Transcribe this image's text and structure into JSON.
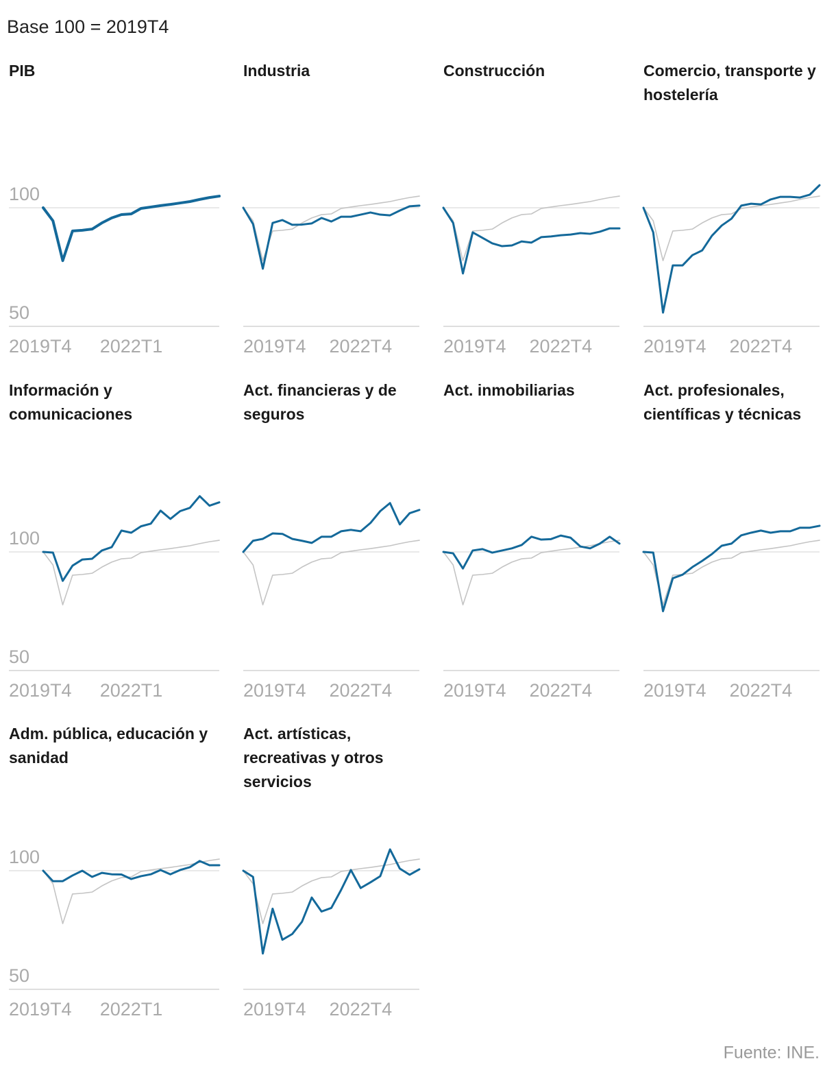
{
  "header": "Base 100 = 2019T4",
  "source": "Fuente: INE.",
  "chart_data": [
    {
      "type": "line",
      "title": "PIB",
      "categories": [
        "2019T4",
        null,
        null,
        null,
        null,
        null,
        null,
        null,
        null,
        "2022T1",
        null,
        null,
        null,
        null,
        null,
        null,
        null,
        null,
        null
      ],
      "series": [
        {
          "color": "#14699a",
          "line_width": 4,
          "values": [
            100,
            94.5,
            77.7,
            90.2,
            90.5,
            91,
            93.6,
            95.7,
            97.1,
            97.4,
            99.7,
            100.3,
            100.9,
            101.4,
            102,
            102.6,
            103.5,
            104.3,
            104.9
          ]
        }
      ],
      "ylim": [
        50,
        125
      ],
      "yticks": [
        50,
        100
      ],
      "ytick_labels": true,
      "grid": true
    },
    {
      "type": "line",
      "title": "Industria",
      "categories": [
        "2019T4",
        null,
        null,
        null,
        null,
        null,
        null,
        null,
        null,
        null,
        null,
        null,
        "2022T4",
        null,
        null,
        null,
        null,
        null,
        null
      ],
      "series": [
        {
          "color": "#14699a",
          "line_width": 3,
          "values": [
            100,
            93.1,
            74.3,
            93.6,
            94.8,
            92.8,
            92.9,
            93.4,
            95.7,
            94.2,
            96.2,
            96.2,
            97.1,
            98,
            97.1,
            96.8,
            98.8,
            100.6,
            100.9
          ]
        }
      ],
      "reference_color": "#c4c4c4",
      "ylim": [
        50,
        125
      ],
      "yticks": [
        50,
        100
      ],
      "ytick_labels": false,
      "grid": true
    },
    {
      "type": "line",
      "title": "Construcción",
      "categories": [
        "2019T4",
        null,
        null,
        null,
        null,
        null,
        null,
        null,
        null,
        null,
        null,
        null,
        "2022T4",
        null,
        null,
        null,
        null,
        null,
        null
      ],
      "series": [
        {
          "color": "#14699a",
          "line_width": 3,
          "values": [
            100,
            93.6,
            72.3,
            89.6,
            87.3,
            85,
            83.8,
            84.1,
            85.8,
            85.3,
            87.6,
            87.9,
            88.4,
            88.7,
            89.3,
            89,
            89.9,
            91.3,
            91.3
          ]
        }
      ],
      "reference_color": "#c4c4c4",
      "ylim": [
        50,
        125
      ],
      "yticks": [
        50,
        100
      ],
      "ytick_labels": false,
      "grid": true
    },
    {
      "type": "line",
      "title": "Comercio, transporte y hostelería",
      "categories": [
        "2019T4",
        null,
        null,
        null,
        null,
        null,
        null,
        null,
        null,
        null,
        null,
        null,
        "2022T4",
        null,
        null,
        null,
        null,
        null,
        null
      ],
      "series": [
        {
          "color": "#14699a",
          "line_width": 3,
          "values": [
            100,
            89.6,
            55.8,
            75.7,
            75.7,
            80,
            82,
            88.2,
            92.5,
            95.4,
            100.9,
            101.7,
            101.4,
            103.5,
            104.6,
            104.6,
            104.3,
            105.5,
            109.5
          ]
        }
      ],
      "reference_color": "#c4c4c4",
      "ylim": [
        50,
        125
      ],
      "yticks": [
        50,
        100
      ],
      "ytick_labels": false,
      "grid": true
    },
    {
      "type": "line",
      "title": "Información y comunicaciones",
      "categories": [
        "2019T4",
        null,
        null,
        null,
        null,
        null,
        null,
        null,
        null,
        "2022T1",
        null,
        null,
        null,
        null,
        null,
        null,
        null,
        null,
        null
      ],
      "series": [
        {
          "color": "#14699a",
          "line_width": 3,
          "values": [
            100,
            99.7,
            87.8,
            94.2,
            96.8,
            97.1,
            100.6,
            102,
            109,
            108.1,
            110.8,
            111.9,
            117.4,
            113.9,
            117.2,
            118.6,
            123.5,
            119.5,
            120.9
          ]
        }
      ],
      "reference_color": "#c4c4c4",
      "ylim": [
        50,
        125
      ],
      "yticks": [
        50,
        100
      ],
      "ytick_labels": true,
      "grid": true
    },
    {
      "type": "line",
      "title": "Act. financieras y de seguros",
      "categories": [
        "2019T4",
        null,
        null,
        null,
        null,
        null,
        null,
        null,
        null,
        null,
        null,
        null,
        "2022T4",
        null,
        null,
        null,
        null,
        null,
        null
      ],
      "series": [
        {
          "color": "#14699a",
          "line_width": 3,
          "values": [
            100,
            104.7,
            105.5,
            107.8,
            107.6,
            105.5,
            104.7,
            103.8,
            106.4,
            106.4,
            108.7,
            109.3,
            108.7,
            112.2,
            117.2,
            120.6,
            111.6,
            116.3,
            117.7
          ]
        }
      ],
      "reference_color": "#c4c4c4",
      "ylim": [
        50,
        125
      ],
      "yticks": [
        50,
        100
      ],
      "ytick_labels": false,
      "grid": true
    },
    {
      "type": "line",
      "title": "Act. inmobiliarias",
      "categories": [
        "2019T4",
        null,
        null,
        null,
        null,
        null,
        null,
        null,
        null,
        null,
        null,
        null,
        "2022T4",
        null,
        null,
        null,
        null,
        null,
        null
      ],
      "series": [
        {
          "color": "#14699a",
          "line_width": 3,
          "values": [
            100,
            99.4,
            93,
            100.6,
            101.2,
            99.7,
            100.6,
            101.5,
            102.9,
            106.4,
            105.2,
            105.4,
            106.9,
            106,
            102.3,
            101.5,
            103.5,
            106.4,
            103.5
          ]
        }
      ],
      "reference_color": "#c4c4c4",
      "ylim": [
        50,
        125
      ],
      "yticks": [
        50,
        100
      ],
      "ytick_labels": false,
      "grid": true
    },
    {
      "type": "line",
      "title": "Act. profesionales, científicas y técnicas",
      "categories": [
        "2019T4",
        null,
        null,
        null,
        null,
        null,
        null,
        null,
        null,
        null,
        null,
        null,
        "2022T4",
        null,
        null,
        null,
        null,
        null,
        null
      ],
      "series": [
        {
          "color": "#14699a",
          "line_width": 3,
          "values": [
            100,
            99.7,
            75,
            88.9,
            90.4,
            93.6,
            96.2,
            99.1,
            102.6,
            103.5,
            107,
            108.1,
            109,
            108.1,
            108.7,
            108.7,
            110.2,
            110.2,
            111
          ]
        }
      ],
      "reference_color": "#c4c4c4",
      "ylim": [
        50,
        125
      ],
      "yticks": [
        50,
        100
      ],
      "ytick_labels": false,
      "grid": true
    },
    {
      "type": "line",
      "title": "Adm. pública, educación y sanidad",
      "categories": [
        "2019T4",
        null,
        null,
        null,
        null,
        null,
        null,
        null,
        null,
        "2022T1",
        null,
        null,
        null,
        null,
        null,
        null,
        null,
        null,
        null
      ],
      "series": [
        {
          "color": "#14699a",
          "line_width": 3,
          "values": [
            100,
            95.6,
            95.6,
            98,
            100,
            97.4,
            99.1,
            98.5,
            98.4,
            96.5,
            97.7,
            98.5,
            100.3,
            98.5,
            100.3,
            101.5,
            104.1,
            102.3,
            102.3
          ]
        }
      ],
      "reference_color": "#c4c4c4",
      "ylim": [
        50,
        125
      ],
      "yticks": [
        50,
        100
      ],
      "ytick_labels": true,
      "grid": true
    },
    {
      "type": "line",
      "title": "Act. artísticas, recreativas y otros servicios",
      "categories": [
        "2019T4",
        null,
        null,
        null,
        null,
        null,
        null,
        null,
        null,
        null,
        null,
        null,
        "2022T4",
        null,
        null,
        null,
        null,
        null,
        null
      ],
      "series": [
        {
          "color": "#14699a",
          "line_width": 3,
          "values": [
            100,
            97.4,
            65.1,
            84,
            70.9,
            73.3,
            78.5,
            88.7,
            82.8,
            84.3,
            91.9,
            100.3,
            92.7,
            95.1,
            97.7,
            109,
            100.9,
            98.3,
            100.6
          ]
        }
      ],
      "reference_color": "#c4c4c4",
      "ylim": [
        50,
        125
      ],
      "yticks": [
        50,
        100
      ],
      "ytick_labels": false,
      "grid": true
    }
  ]
}
